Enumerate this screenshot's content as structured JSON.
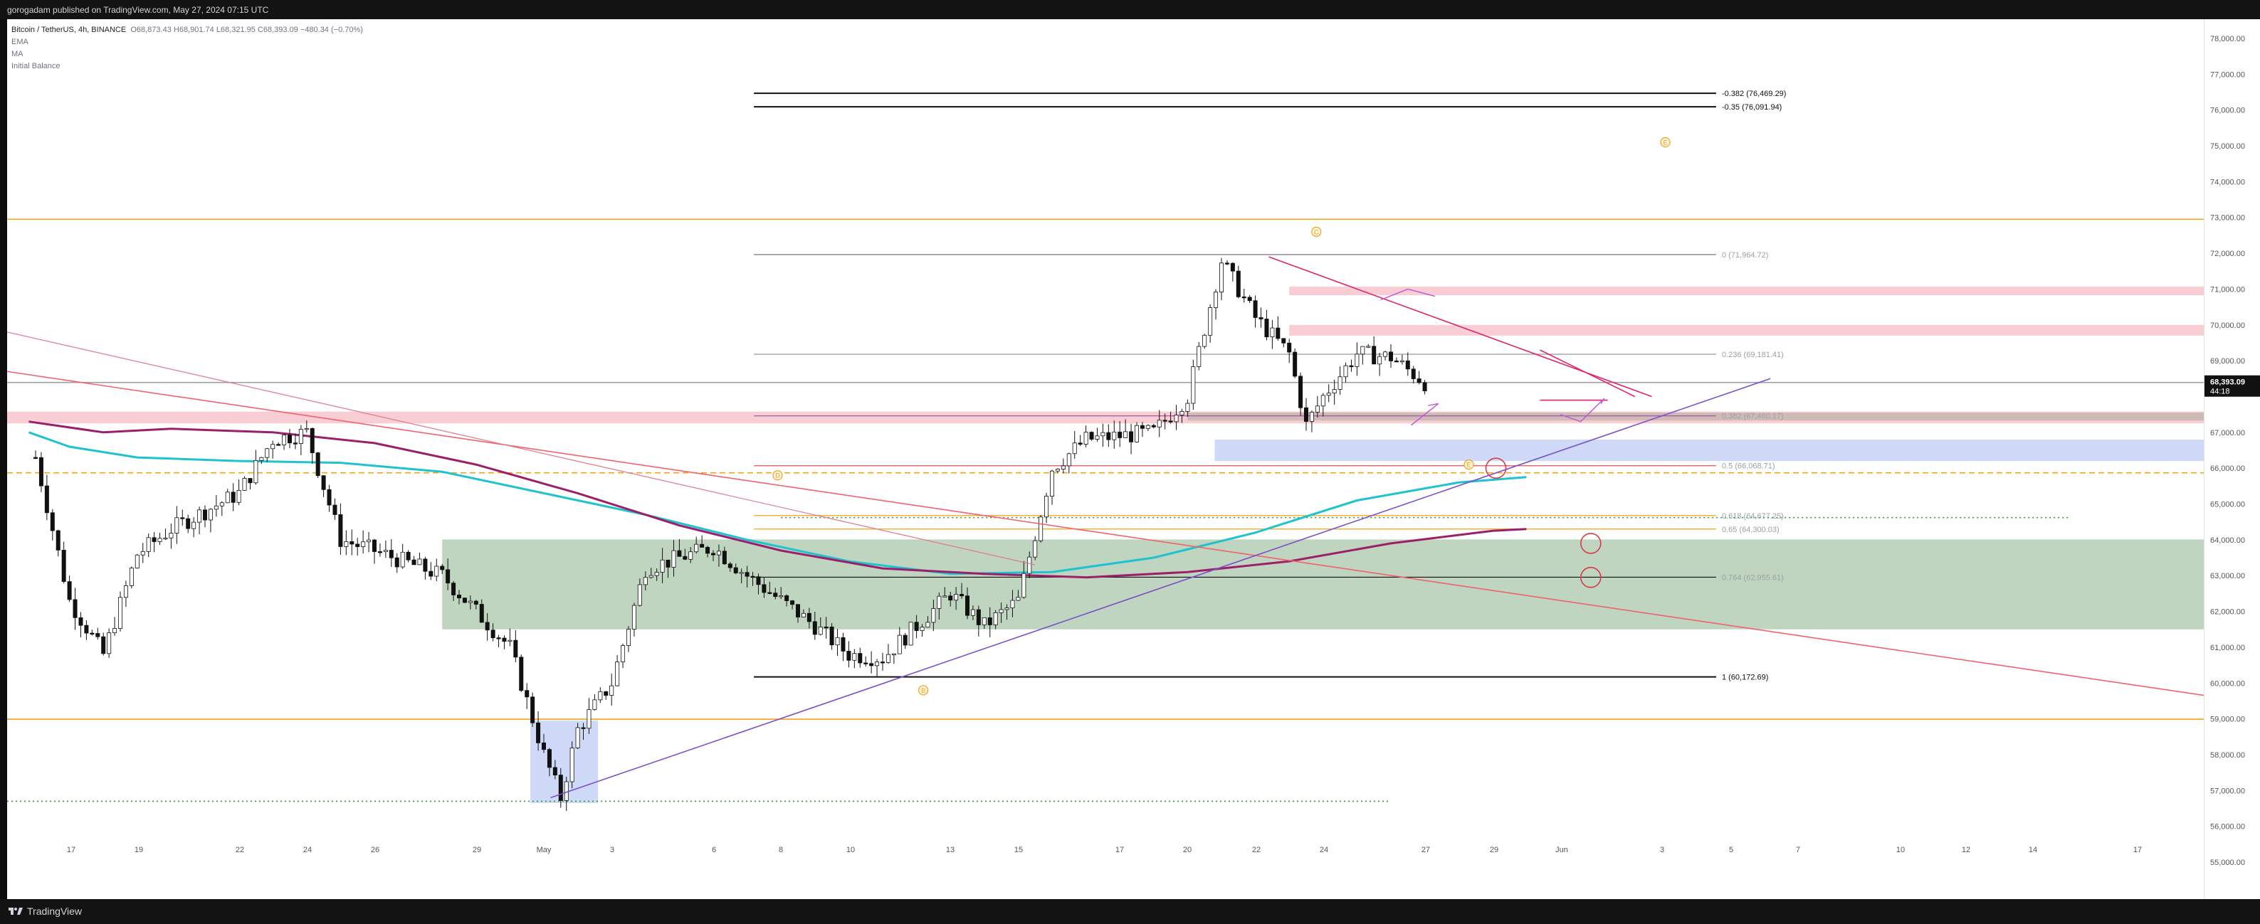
{
  "publisher_line": "gorogadam published on TradingView.com, May 27, 2024 07:15 UTC",
  "brand": "TradingView",
  "legend": {
    "symbol": "Bitcoin / TetherUS, 4h, BINANCE",
    "ohlc": "O68,873.43 H68,901.74 L68,321.95 C68,393.09 −480.34 (−0.70%)",
    "indicators": [
      "EMA",
      "MA",
      "Initial Balance"
    ]
  },
  "colors": {
    "candle_up": "#ffffff",
    "candle_down": "#111111",
    "ema_cyan": "#1ec3cf",
    "ma_purple": "#9c1f6a",
    "orange_level": "#f4a21a",
    "downtrend_red": "#f0626f",
    "uptrend_purple": "#7b4fc8",
    "green_zone": "#b5ceb4",
    "blue_zone": "#c6d4f6",
    "pink_zone": "#f7c6cc"
  },
  "chart_data": {
    "type": "candlestick",
    "symbol": "BTCUSDT",
    "exchange": "BINANCE",
    "interval": "4h",
    "last_price": "68,393.09",
    "countdown": "44:18",
    "ylim": [
      54500,
      78700
    ],
    "price_ticks": [
      "78,000.00",
      "77,000.00",
      "76,000.00",
      "75,000.00",
      "74,000.00",
      "73,000.00",
      "72,000.00",
      "71,000.00",
      "70,000.00",
      "69,000.00",
      "67,000.00",
      "66,000.00",
      "65,000.00",
      "64,000.00",
      "63,000.00",
      "62,000.00",
      "61,000.00",
      "60,000.00",
      "59,000.00",
      "58,000.00",
      "57,000.00",
      "56,000.00",
      "55,000.00"
    ],
    "time_ticks": [
      "17",
      "19",
      "22",
      "24",
      "26",
      "29",
      "May",
      "3",
      "6",
      "8",
      "10",
      "13",
      "15",
      "17",
      "20",
      "22",
      "24",
      "27",
      "29",
      "Jun",
      "3",
      "5",
      "7",
      "10",
      "12",
      "14",
      "17"
    ],
    "price_path_keypoints": [
      [
        "Apr 16",
        66300
      ],
      [
        "Apr 17",
        62300
      ],
      [
        "Apr 18",
        60800
      ],
      [
        "Apr 19",
        63600
      ],
      [
        "Apr 20",
        64300
      ],
      [
        "Apr 22",
        65300
      ],
      [
        "Apr 23",
        66800
      ],
      [
        "Apr 24",
        67000
      ],
      [
        "Apr 25",
        64000
      ],
      [
        "Apr 26",
        63700
      ],
      [
        "Apr 28",
        63000
      ],
      [
        "Apr 30",
        61000
      ],
      [
        "May 1",
        58000
      ],
      [
        "May 1 late",
        56800
      ],
      [
        "May 2",
        58700
      ],
      [
        "May 3",
        60000
      ],
      [
        "May 4",
        63200
      ],
      [
        "May 6",
        63800
      ],
      [
        "May 7",
        63000
      ],
      [
        "May 9",
        61600
      ],
      [
        "May 10",
        60800
      ],
      [
        "May 11",
        60700
      ],
      [
        "May 13",
        62500
      ],
      [
        "May 14",
        61600
      ],
      [
        "May 15",
        62300
      ],
      [
        "May 16",
        66000
      ],
      [
        "May 17",
        66800
      ],
      [
        "May 19",
        67000
      ],
      [
        "May 20",
        68000
      ],
      [
        "May 21",
        71800
      ],
      [
        "May 22",
        70200
      ],
      [
        "May 23",
        69200
      ],
      [
        "May 23 late",
        67200
      ],
      [
        "May 24",
        68000
      ],
      [
        "May 25",
        69200
      ],
      [
        "May 26",
        69100
      ],
      [
        "May 27",
        68393
      ]
    ],
    "fib_levels": [
      {
        "label": "-0.382 (76,469.29)",
        "price": 76469.29
      },
      {
        "label": "-0.35 (76,091.94)",
        "price": 76091.94
      },
      {
        "label": "0 (71,964.72)",
        "price": 71964.72
      },
      {
        "label": "0.236 (69,181.41)",
        "price": 69181.41
      },
      {
        "label": "0.382 (67,460.17)",
        "price": 67460.17
      },
      {
        "label": "0.5 (66,068.71)",
        "price": 66068.71
      },
      {
        "label": "0.618 (64,677.25)",
        "price": 64677.25
      },
      {
        "label": "0.65 (64,300.03)",
        "price": 64300.03
      },
      {
        "label": "0.764 (62,955.61)",
        "price": 62955.61
      },
      {
        "label": "1 (60,172.69)",
        "price": 60172.69
      }
    ],
    "wave_labels": [
      "C",
      "E",
      "D",
      "B",
      "E"
    ],
    "horizontal_levels": [
      {
        "price": 72950,
        "style": "solid",
        "color": "#f4a21a"
      },
      {
        "price": 58990,
        "style": "solid",
        "color": "#f4a21a"
      },
      {
        "price": 65870,
        "style": "dashed",
        "color": "#f4a21a"
      },
      {
        "price": 56700,
        "style": "dotted",
        "color": "#2e9b2e"
      },
      {
        "price": 64620,
        "style": "dotted",
        "color": "#2e9b2e"
      },
      {
        "price": 68393,
        "style": "solid",
        "color": "#a0a0a0"
      }
    ]
  }
}
